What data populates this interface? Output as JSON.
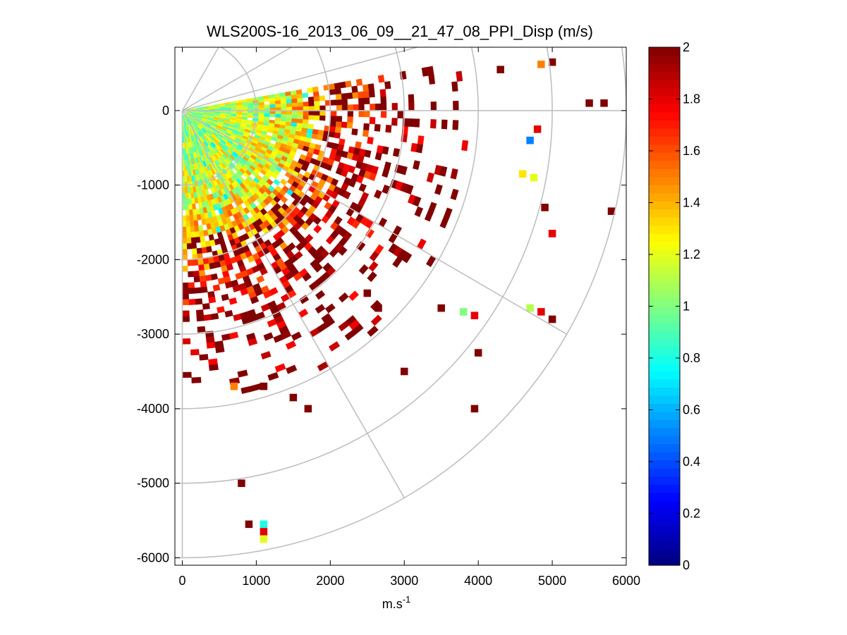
{
  "chart_data": {
    "type": "heatmap",
    "subtype": "polar-sector-ppi",
    "title": "WLS200S-16_2013_06_09__21_47_08_PPI_Disp (m/s)",
    "xlabel": "m.s",
    "xlabel_superscript": "-1",
    "ylabel": "",
    "xlim": [
      -100,
      6000
    ],
    "ylim": [
      -6100,
      850
    ],
    "xticks": [
      0,
      1000,
      2000,
      3000,
      4000,
      5000,
      6000
    ],
    "yticks": [
      0,
      -1000,
      -2000,
      -3000,
      -4000,
      -5000,
      -6000
    ],
    "xtick_labels": [
      "0",
      "1000",
      "2000",
      "3000",
      "4000",
      "5000",
      "6000"
    ],
    "ytick_labels": [
      "0",
      "-1000",
      "-2000",
      "-3000",
      "-4000",
      "-5000",
      "-6000"
    ],
    "polar_grid": {
      "ring_radii": [
        1000,
        2000,
        3000,
        4000,
        5000,
        6000
      ],
      "spoke_angles_deg": [
        15,
        30,
        60,
        -30,
        -60,
        -90
      ]
    },
    "sector": {
      "start_angle_deg": 10,
      "end_angle_deg": -90,
      "range_step_m": 75,
      "azimuth_step_deg": 2
    },
    "colorbar": {
      "colormap": "jet",
      "clim": [
        0,
        2
      ],
      "ticks": [
        0,
        0.2,
        0.4,
        0.6,
        0.8,
        1,
        1.2,
        1.4,
        1.6,
        1.8,
        2
      ],
      "tick_labels": [
        "0",
        "0.2",
        "0.4",
        "0.6",
        "0.8",
        "1",
        "1.2",
        "1.4",
        "1.6",
        "1.8",
        "2"
      ]
    },
    "value_profile": {
      "ranges_m": [
        0,
        500,
        1000,
        1500,
        2000,
        2500,
        3000,
        4000,
        6000
      ],
      "mean_disp_ms": [
        1.05,
        1.1,
        1.15,
        1.3,
        1.55,
        1.8,
        1.95,
        2.0,
        2.0
      ],
      "coverage": [
        1.0,
        1.0,
        0.97,
        0.9,
        0.7,
        0.45,
        0.22,
        0.06,
        0.02
      ]
    },
    "isolated_cells": [
      {
        "x": 5000,
        "y": 650,
        "v": 2.0
      },
      {
        "x": 4850,
        "y": 620,
        "v": 1.5
      },
      {
        "x": 5500,
        "y": 100,
        "v": 2.0
      },
      {
        "x": 5700,
        "y": 100,
        "v": 2.0
      },
      {
        "x": 4300,
        "y": 550,
        "v": 2.0
      },
      {
        "x": 4800,
        "y": -250,
        "v": 1.8
      },
      {
        "x": 4700,
        "y": -400,
        "v": 0.5
      },
      {
        "x": 4600,
        "y": -850,
        "v": 1.3
      },
      {
        "x": 4750,
        "y": -900,
        "v": 1.2
      },
      {
        "x": 5800,
        "y": -1350,
        "v": 2.0
      },
      {
        "x": 4900,
        "y": -1300,
        "v": 2.0
      },
      {
        "x": 5000,
        "y": -1650,
        "v": 1.8
      },
      {
        "x": 4700,
        "y": -2650,
        "v": 1.1
      },
      {
        "x": 4850,
        "y": -2700,
        "v": 1.8
      },
      {
        "x": 5000,
        "y": -2800,
        "v": 2.0
      },
      {
        "x": 3800,
        "y": -2700,
        "v": 1.0
      },
      {
        "x": 3950,
        "y": -2750,
        "v": 1.8
      },
      {
        "x": 4000,
        "y": -3250,
        "v": 2.0
      },
      {
        "x": 3500,
        "y": -2650,
        "v": 2.0
      },
      {
        "x": 3950,
        "y": -4000,
        "v": 2.0
      },
      {
        "x": 3000,
        "y": -3500,
        "v": 2.0
      },
      {
        "x": 1700,
        "y": -4000,
        "v": 2.0
      },
      {
        "x": 1500,
        "y": -3850,
        "v": 2.0
      },
      {
        "x": 800,
        "y": -5000,
        "v": 2.0
      },
      {
        "x": 900,
        "y": -5550,
        "v": 2.0
      },
      {
        "x": 1100,
        "y": -5550,
        "v": 0.8
      },
      {
        "x": 1100,
        "y": -5650,
        "v": 1.8
      },
      {
        "x": 1100,
        "y": -5750,
        "v": 1.2
      },
      {
        "x": 700,
        "y": -3700,
        "v": 1.5
      },
      {
        "x": 1100,
        "y": -3700,
        "v": 2.0
      },
      {
        "x": 2500,
        "y": -2450,
        "v": 2.0
      },
      {
        "x": 2650,
        "y": -2650,
        "v": 2.0
      }
    ]
  }
}
